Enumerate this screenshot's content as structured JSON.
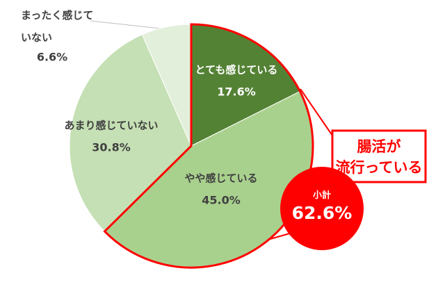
{
  "chart_data": {
    "type": "pie",
    "categories": [
      "とても感じている",
      "やや感じている",
      "あまり感じていない",
      "まったく感じていない"
    ],
    "values": [
      17.6,
      45.0,
      30.8,
      6.6
    ],
    "value_labels": [
      "17.6%",
      "45.0%",
      "30.8%",
      "6.6%"
    ],
    "colors": [
      "#548235",
      "#a9d18e",
      "#c5e0b4",
      "#e2efda"
    ],
    "label_colors": [
      "#ffffff",
      "#404040",
      "#404040",
      "#404040"
    ],
    "highlight_color": "#ff0000",
    "annotation": {
      "lines": [
        "腸活が",
        "流行っている"
      ]
    },
    "subtotal": {
      "label": "小計",
      "value_label": "62.6%"
    }
  }
}
